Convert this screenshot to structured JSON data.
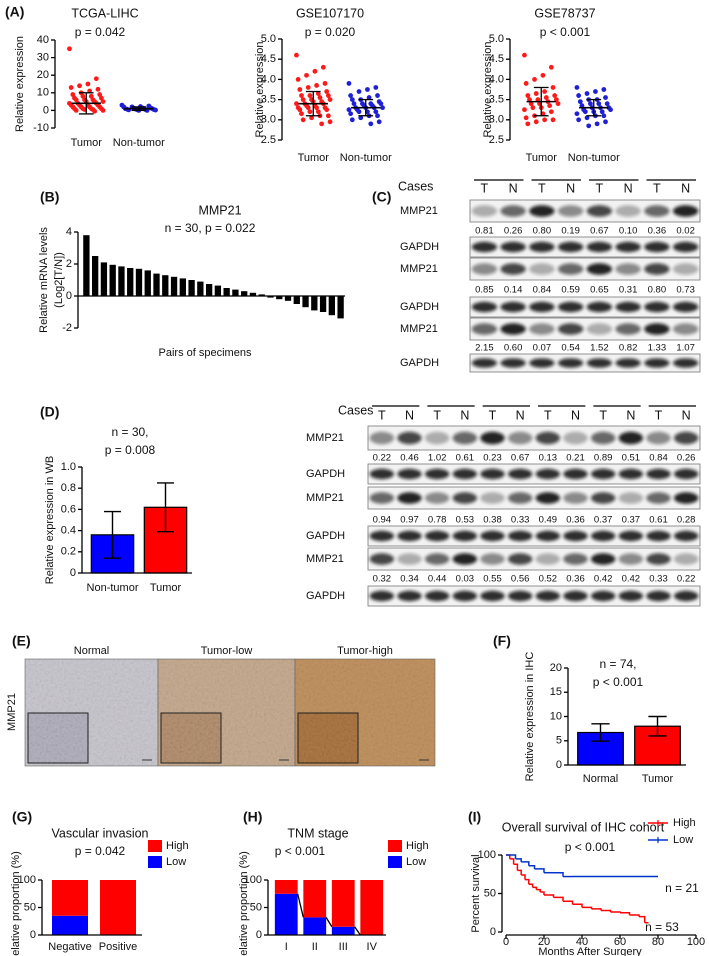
{
  "panel_labels": [
    "(A)",
    "(B)",
    "(C)",
    "(D)",
    "(E)",
    "(F)",
    "(G)",
    "(H)",
    "(I)"
  ],
  "chart_data": [
    {
      "type": "strip",
      "title": "TCGA-LIHC",
      "annotations": [
        "p = 0.042"
      ],
      "ylabel": "Relative expression",
      "categories": [
        "Tumor",
        "Non-tumor"
      ],
      "colors": [
        "#ff1a1a",
        "#1f1fd6"
      ],
      "values": [
        [
          35,
          18,
          15,
          14,
          13,
          12,
          11,
          10,
          9,
          9,
          8,
          8,
          7,
          7,
          6,
          6,
          6,
          5,
          5,
          5,
          4,
          4,
          4,
          3,
          3,
          3,
          3,
          2,
          2,
          2,
          2,
          1,
          1,
          1,
          1,
          0.5,
          0.5,
          0,
          0,
          -0.5
        ],
        [
          3,
          2.5,
          2.2,
          2,
          2,
          1.5,
          1.5,
          1.2,
          1,
          1,
          1,
          0.8,
          0.7,
          0.5,
          0.5,
          0.4,
          0.3,
          0.2,
          0,
          0
        ]
      ],
      "means": [
        4,
        1
      ],
      "sd": [
        6,
        1
      ],
      "ylim": [
        -10,
        40
      ],
      "yticks": [
        -10,
        0,
        10,
        20,
        30,
        40
      ]
    },
    {
      "type": "strip",
      "title": "GSE107170",
      "annotations": [
        "p = 0.020"
      ],
      "ylabel": "Relative expression",
      "categories": [
        "Tumor",
        "Non-tumor"
      ],
      "colors": [
        "#ff1a1a",
        "#1f1fd6"
      ],
      "values": [
        [
          4.6,
          4.3,
          4.2,
          4.1,
          4.0,
          3.9,
          3.85,
          3.8,
          3.75,
          3.7,
          3.65,
          3.6,
          3.6,
          3.6,
          3.55,
          3.5,
          3.5,
          3.5,
          3.45,
          3.45,
          3.4,
          3.4,
          3.4,
          3.35,
          3.35,
          3.3,
          3.3,
          3.3,
          3.3,
          3.25,
          3.25,
          3.2,
          3.2,
          3.15,
          3.1,
          3.1,
          3.05,
          3.0,
          2.95,
          2.9
        ],
        [
          3.9,
          3.8,
          3.75,
          3.7,
          3.6,
          3.6,
          3.55,
          3.5,
          3.5,
          3.45,
          3.4,
          3.4,
          3.4,
          3.4,
          3.35,
          3.35,
          3.3,
          3.3,
          3.3,
          3.3,
          3.25,
          3.25,
          3.2,
          3.2,
          3.2,
          3.15,
          3.1,
          3.1,
          3.05,
          3.0,
          2.95,
          2.9
        ]
      ],
      "means": [
        3.4,
        3.3
      ],
      "sd": [
        0.3,
        0.2
      ],
      "ylim": [
        2.5,
        5
      ],
      "yticks": [
        2.5,
        {
          "value": 3,
          "label": "3.0"
        },
        3.5,
        {
          "value": 4,
          "label": "4.0"
        },
        4.5,
        {
          "value": 5,
          "label": "5.0"
        }
      ]
    },
    {
      "type": "strip",
      "title": "GSE78737",
      "annotations": [
        "p < 0.001"
      ],
      "ylabel": "Relative expression",
      "categories": [
        "Tumor",
        "Non-tumor"
      ],
      "colors": [
        "#ff1a1a",
        "#1f1fd6"
      ],
      "values": [
        [
          4.6,
          4.3,
          4.1,
          4.0,
          3.9,
          3.8,
          3.7,
          3.65,
          3.6,
          3.6,
          3.55,
          3.5,
          3.5,
          3.5,
          3.45,
          3.4,
          3.4,
          3.4,
          3.35,
          3.3,
          3.3,
          3.25,
          3.2,
          3.15,
          3.1,
          3.05,
          3.0,
          3.0,
          2.95,
          2.9
        ],
        [
          3.8,
          3.75,
          3.7,
          3.65,
          3.6,
          3.55,
          3.5,
          3.5,
          3.45,
          3.4,
          3.4,
          3.4,
          3.35,
          3.3,
          3.3,
          3.3,
          3.25,
          3.25,
          3.2,
          3.2,
          3.2,
          3.15,
          3.1,
          3.1,
          3.05,
          3.0,
          2.95,
          2.9,
          2.85
        ]
      ],
      "means": [
        3.45,
        3.3
      ],
      "sd": [
        0.35,
        0.2
      ],
      "ylim": [
        2.5,
        5
      ],
      "yticks": [
        2.5,
        {
          "value": 3,
          "label": "3.0"
        },
        3.5,
        {
          "value": 4,
          "label": "4.0"
        },
        4.5,
        {
          "value": 5,
          "label": "5.0"
        }
      ]
    },
    {
      "type": "bar",
      "title": "MMP21",
      "annotations": [
        "n = 30, p = 0.022"
      ],
      "ylabel": [
        "Relative mRNA levels",
        "(Log2[T/N])"
      ],
      "xlabel": "Pairs of specimens",
      "color": "#000000",
      "values": [
        3.8,
        2.5,
        2.1,
        1.95,
        1.85,
        1.75,
        1.7,
        1.6,
        1.4,
        1.3,
        1.2,
        1.1,
        1.0,
        0.9,
        0.75,
        0.65,
        0.5,
        0.4,
        0.3,
        0.2,
        0.1,
        -0.1,
        -0.2,
        -0.3,
        -0.5,
        -0.7,
        -0.9,
        -1.0,
        -1.2,
        -1.4
      ],
      "ylim": [
        -2,
        4
      ],
      "yticks": [
        -2,
        0,
        2,
        4
      ]
    },
    {
      "type": "bar",
      "annotations": [
        "n = 30,",
        "p = 0.008"
      ],
      "ylabel": "Relative expression in WB",
      "categories": [
        "Non-tumor",
        "Tumor"
      ],
      "colors": [
        "#0000ff",
        "#ff0000"
      ],
      "values": [
        0.36,
        0.62
      ],
      "errors": [
        0.22,
        0.23
      ],
      "ylim": [
        0,
        1
      ],
      "yticks": [
        0,
        0.2,
        0.4,
        0.6,
        0.8,
        {
          "value": 1,
          "label": "1.0"
        }
      ]
    },
    {
      "type": "bar",
      "annotations": [
        "n = 74,",
        "p < 0.001"
      ],
      "ylabel": "Relative expression in IHC",
      "categories": [
        "Normal",
        "Tumor"
      ],
      "colors": [
        "#0000ff",
        "#ff0000"
      ],
      "values": [
        6.7,
        8.0
      ],
      "errors": [
        1.8,
        2.0
      ],
      "ylim": [
        0,
        20
      ],
      "yticks": [
        0,
        5,
        10,
        15,
        20
      ]
    },
    {
      "type": "stacked_bar",
      "title": "Vascular invasion",
      "annotations": [
        "p = 0.042"
      ],
      "ylabel": "Relative proportion (%)",
      "categories": [
        "Negative",
        "Positive"
      ],
      "legend": "right",
      "series": [
        {
          "name": "High",
          "color": "#ff0000",
          "values": [
            65,
            100
          ]
        },
        {
          "name": "Low",
          "color": "#0000ff",
          "values": [
            35,
            0
          ]
        }
      ],
      "ylim": [
        0,
        100
      ],
      "yticks": [
        0,
        50,
        100
      ]
    },
    {
      "type": "stacked_bar",
      "title": "TNM stage",
      "annotations": [
        "p < 0.001"
      ],
      "ylabel": "Relative proportion (%)",
      "categories": [
        "I",
        "II",
        "III",
        "IV"
      ],
      "legend": "right",
      "connector": true,
      "series": [
        {
          "name": "High",
          "color": "#ff0000",
          "values": [
            25,
            68,
            85,
            100
          ]
        },
        {
          "name": "Low",
          "color": "#0000ff",
          "values": [
            75,
            32,
            15,
            0
          ]
        }
      ],
      "ylim": [
        0,
        100
      ],
      "yticks": [
        0,
        50,
        100
      ]
    },
    {
      "type": "survival",
      "title": "Overall survival of IHC cohort",
      "annotations": [
        "p < 0.001",
        "n = 21",
        "n = 53"
      ],
      "ylabel": "Percent survival",
      "xlabel": "Months After Surgery",
      "legend": "top-right",
      "series": [
        {
          "name": "High",
          "color": "#ff0000",
          "x": [
            0,
            2,
            4,
            6,
            8,
            10,
            12,
            14,
            16,
            18,
            20,
            25,
            30,
            35,
            40,
            45,
            50,
            55,
            60,
            65,
            70,
            73,
            75
          ],
          "values": [
            100,
            95,
            88,
            80,
            74,
            68,
            62,
            58,
            55,
            52,
            48,
            45,
            40,
            36,
            32,
            30,
            28,
            26,
            25,
            22,
            20,
            12,
            12
          ]
        },
        {
          "name": "Low",
          "color": "#0033cc",
          "x": [
            0,
            5,
            8,
            12,
            15,
            20,
            25,
            30,
            35,
            80
          ],
          "values": [
            100,
            95,
            91,
            86,
            82,
            77,
            77,
            72,
            72,
            72
          ]
        }
      ],
      "xlim": [
        0,
        100
      ],
      "xticks": [
        0,
        20,
        40,
        60,
        80,
        100
      ],
      "ylim": [
        0,
        100
      ],
      "yticks": [
        0,
        50,
        100
      ]
    }
  ],
  "blots": [
    {
      "header": "Cases",
      "lanes": [
        "T",
        "N",
        "T",
        "N",
        "T",
        "N",
        "T",
        "N"
      ],
      "rows": [
        {
          "label": "MMP21",
          "quant": [
            "0.81",
            "0.26",
            "0.80",
            "0.19",
            "0.67",
            "0.10",
            "0.36",
            "0.02"
          ]
        },
        {
          "label": "GAPDH"
        },
        {
          "label": "MMP21",
          "quant": [
            "0.85",
            "0.14",
            "0.84",
            "0.59",
            "0.65",
            "0.31",
            "0.80",
            "0.73"
          ]
        },
        {
          "label": "GAPDH"
        },
        {
          "label": "MMP21",
          "quant": [
            "2.15",
            "0.60",
            "0.07",
            "0.54",
            "1.52",
            "0.82",
            "1.33",
            "1.07"
          ]
        },
        {
          "label": "GAPDH"
        }
      ]
    },
    {
      "header": "Cases",
      "lanes": [
        "T",
        "N",
        "T",
        "N",
        "T",
        "N",
        "T",
        "N",
        "T",
        "N",
        "T",
        "N"
      ],
      "rows": [
        {
          "label": "MMP21",
          "quant": [
            "0.22",
            "0.46",
            "1.02",
            "0.61",
            "0.23",
            "0.67",
            "0.13",
            "0.21",
            "0.89",
            "0.51",
            "0.84",
            "0.26"
          ]
        },
        {
          "label": "GAPDH"
        },
        {
          "label": "MMP21",
          "quant": [
            "0.94",
            "0.97",
            "0.78",
            "0.53",
            "0.38",
            "0.33",
            "0.49",
            "0.36",
            "0.37",
            "0.37",
            "0.61",
            "0.28"
          ]
        },
        {
          "label": "GAPDH"
        },
        {
          "label": "MMP21",
          "quant": [
            "0.32",
            "0.34",
            "0.44",
            "0.03",
            "0.55",
            "0.56",
            "0.52",
            "0.36",
            "0.42",
            "0.42",
            "0.33",
            "0.22"
          ]
        },
        {
          "label": "GAPDH"
        }
      ]
    }
  ],
  "ihc": {
    "row_label": "MMP21",
    "columns": [
      "Normal",
      "Tumor-low",
      "Tumor-high"
    ]
  }
}
